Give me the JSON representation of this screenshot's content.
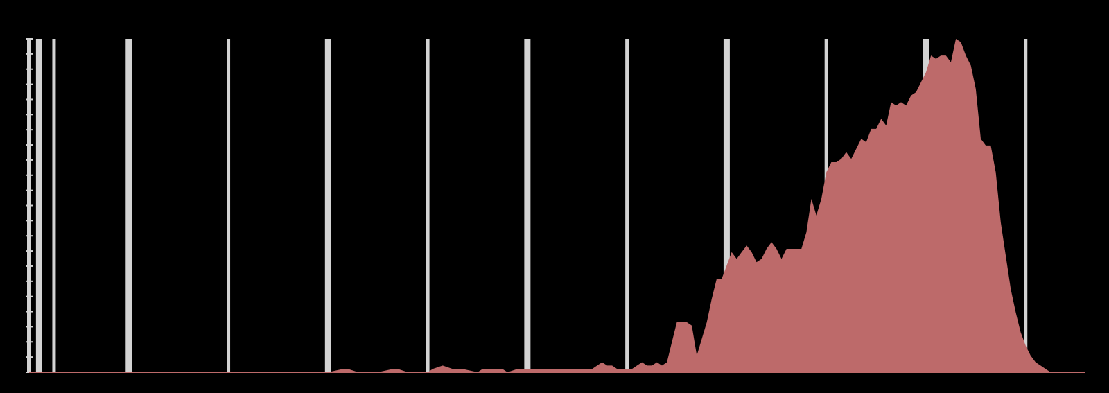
{
  "chart_data": {
    "type": "area",
    "title": "",
    "xlabel": "",
    "ylabel": "",
    "xlim": [
      1810,
      2022
    ],
    "ylim": [
      0,
      100
    ],
    "grid": true,
    "colors": {
      "background": "#000000",
      "area_fill": "#bd6a6a",
      "gridline": "#d3d3d3",
      "axis": "#d3d3d3",
      "tick_label": "#1a1a1a"
    },
    "x_ticks": [
      1812,
      1815,
      1830,
      1850,
      1870,
      1890,
      1910,
      1930,
      1950,
      1970,
      1990,
      2010
    ],
    "x_tick_labels": [
      "",
      "",
      "",
      "",
      "",
      "",
      "",
      "",
      "",
      "",
      "",
      ""
    ],
    "series": [
      {
        "x": [
          1810,
          1820,
          1830,
          1840,
          1850,
          1860,
          1870,
          1873,
          1874,
          1876,
          1877,
          1880,
          1883,
          1884,
          1886,
          1890,
          1891,
          1893,
          1895,
          1897,
          1900,
          1901,
          1903,
          1905,
          1906,
          1908,
          1910,
          1911,
          1913,
          1914,
          1915,
          1916,
          1917,
          1918,
          1919,
          1920,
          1921,
          1923,
          1924,
          1925,
          1926,
          1927,
          1928,
          1929,
          1930,
          1931,
          1932,
          1933,
          1934,
          1935,
          1936,
          1937,
          1938,
          1939,
          1940,
          1941,
          1942,
          1943,
          1944,
          1945,
          1946,
          1947,
          1948,
          1949,
          1950,
          1951,
          1952,
          1953,
          1954,
          1955,
          1956,
          1957,
          1958,
          1959,
          1960,
          1961,
          1962,
          1963,
          1964,
          1965,
          1966,
          1967,
          1968,
          1969,
          1970,
          1971,
          1972,
          1973,
          1974,
          1975,
          1976,
          1977,
          1978,
          1979,
          1980,
          1981,
          1982,
          1983,
          1984,
          1985,
          1986,
          1987,
          1988,
          1989,
          1990,
          1991,
          1992,
          1993,
          1994,
          1995,
          1996,
          1997,
          1998,
          1999,
          2000,
          2001,
          2002,
          2003,
          2004,
          2005,
          2006,
          2007,
          2008,
          2009,
          2010,
          2011,
          2012,
          2013,
          2014,
          2015,
          2016,
          2017,
          2018,
          2019,
          2020,
          2021,
          2022
        ],
        "y": [
          0,
          0,
          0,
          0,
          0,
          0,
          0,
          1,
          1,
          0,
          0,
          0,
          1,
          1,
          0,
          0,
          1,
          2,
          1,
          1,
          0,
          1,
          1,
          1,
          0,
          1,
          1,
          1,
          1,
          1,
          1,
          1,
          1,
          1,
          1,
          1,
          1,
          1,
          2,
          3,
          2,
          2,
          1,
          1,
          1,
          1,
          2,
          3,
          2,
          2,
          3,
          2,
          3,
          9,
          15,
          15,
          15,
          14,
          5,
          10,
          15,
          22,
          28,
          28,
          32,
          36,
          34,
          36,
          38,
          36,
          33,
          34,
          37,
          39,
          37,
          34,
          37,
          37,
          37,
          37,
          42,
          52,
          47,
          52,
          60,
          63,
          63,
          64,
          66,
          64,
          67,
          70,
          69,
          73,
          73,
          76,
          74,
          81,
          80,
          81,
          80,
          83,
          84,
          87,
          90,
          95,
          94,
          95,
          95,
          93,
          100,
          99,
          95,
          92,
          85,
          70,
          68,
          68,
          60,
          45,
          35,
          25,
          18,
          12,
          8,
          5,
          3,
          2,
          1,
          0,
          0,
          0,
          0,
          0,
          0,
          0,
          0
        ]
      }
    ]
  }
}
